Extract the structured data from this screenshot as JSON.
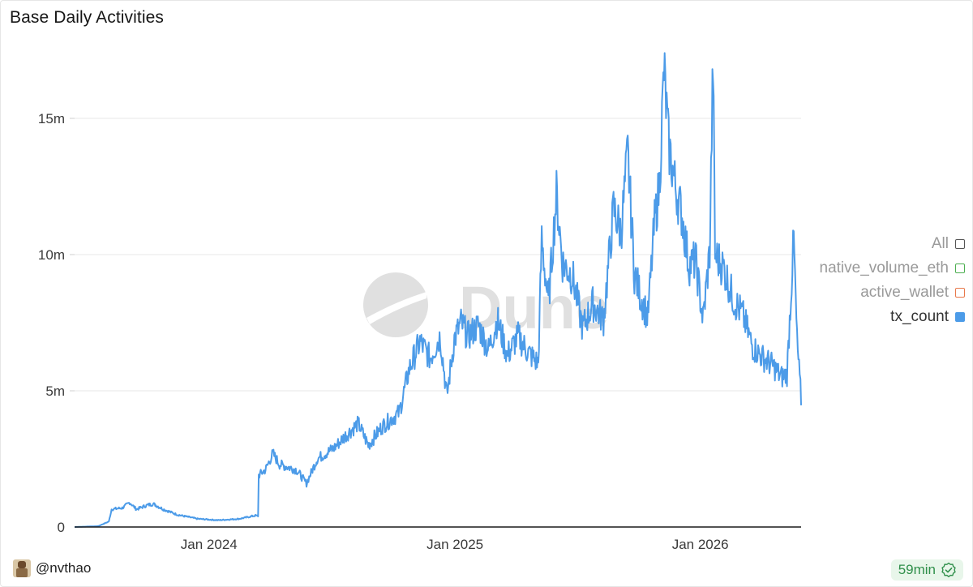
{
  "title": "Base Daily Activities",
  "legend": [
    {
      "label": "All",
      "color": "#555555",
      "filled": false,
      "muted": true
    },
    {
      "label": "native_volume_eth",
      "color": "#4caf50",
      "filled": false,
      "muted": true
    },
    {
      "label": "active_wallet",
      "color": "#e8784a",
      "filled": false,
      "muted": true
    },
    {
      "label": "tx_count",
      "color": "#4c9be8",
      "filled": true,
      "muted": false
    }
  ],
  "footer": {
    "username": "@nvthao",
    "refresh": "59min",
    "avatar_icon": "avatar-icon",
    "refresh_icon": "check-icon"
  },
  "watermark": "Dune",
  "chart_data": {
    "type": "line",
    "series_name": "tx_count",
    "color": "#4c9be8",
    "ylim": [
      0,
      17500000
    ],
    "yticks": [
      {
        "value": 0,
        "label": "0"
      },
      {
        "value": 5000000,
        "label": "5m"
      },
      {
        "value": 10000000,
        "label": "10m"
      },
      {
        "value": 15000000,
        "label": "15m"
      }
    ],
    "xlim": [
      "2023-06-15",
      "2026-05-31"
    ],
    "xticks": [
      {
        "date": "2024-01-01",
        "label": "Jan 2024"
      },
      {
        "date": "2025-01-01",
        "label": "Jan 2025"
      },
      {
        "date": "2026-01-01",
        "label": "Jan 2026"
      }
    ],
    "points": [
      [
        "2023-06-15",
        0
      ],
      [
        "2023-07-20",
        30000
      ],
      [
        "2023-08-05",
        200000
      ],
      [
        "2023-08-09",
        650000
      ],
      [
        "2023-08-25",
        700000
      ],
      [
        "2023-09-05",
        900000
      ],
      [
        "2023-09-15",
        650000
      ],
      [
        "2023-10-01",
        800000
      ],
      [
        "2023-10-10",
        850000
      ],
      [
        "2023-10-25",
        650000
      ],
      [
        "2023-11-15",
        450000
      ],
      [
        "2023-12-15",
        300000
      ],
      [
        "2024-01-15",
        250000
      ],
      [
        "2024-02-15",
        300000
      ],
      [
        "2024-03-10",
        420000
      ],
      [
        "2024-03-14",
        400000
      ],
      [
        "2024-03-15",
        1900000
      ],
      [
        "2024-03-25",
        2100000
      ],
      [
        "2024-04-05",
        2700000
      ],
      [
        "2024-04-15",
        2300000
      ],
      [
        "2024-05-10",
        2100000
      ],
      [
        "2024-05-25",
        1600000
      ],
      [
        "2024-06-10",
        2500000
      ],
      [
        "2024-07-05",
        2900000
      ],
      [
        "2024-07-20",
        3300000
      ],
      [
        "2024-08-10",
        3800000
      ],
      [
        "2024-08-25",
        3000000
      ],
      [
        "2024-09-15",
        3700000
      ],
      [
        "2024-10-10",
        4200000
      ],
      [
        "2024-10-25",
        5800000
      ],
      [
        "2024-11-10",
        6800000
      ],
      [
        "2024-11-25",
        6200000
      ],
      [
        "2024-12-10",
        7000000
      ],
      [
        "2024-12-20",
        4800000
      ],
      [
        "2024-12-31",
        6900000
      ],
      [
        "2025-01-10",
        7500000
      ],
      [
        "2025-01-20",
        7000000
      ],
      [
        "2025-02-05",
        7400000
      ],
      [
        "2025-02-20",
        6500000
      ],
      [
        "2025-03-05",
        7600000
      ],
      [
        "2025-03-20",
        6300000
      ],
      [
        "2025-04-05",
        7000000
      ],
      [
        "2025-04-20",
        6400000
      ],
      [
        "2025-05-05",
        6000000
      ],
      [
        "2025-05-10",
        10500000
      ],
      [
        "2025-05-20",
        8200000
      ],
      [
        "2025-06-01",
        12200000
      ],
      [
        "2025-06-10",
        9700000
      ],
      [
        "2025-06-25",
        9200000
      ],
      [
        "2025-07-10",
        7300000
      ],
      [
        "2025-07-25",
        8200000
      ],
      [
        "2025-08-10",
        7600000
      ],
      [
        "2025-08-25",
        11700000
      ],
      [
        "2025-09-05",
        10800000
      ],
      [
        "2025-09-15",
        13700000
      ],
      [
        "2025-09-25",
        9300000
      ],
      [
        "2025-10-05",
        8400000
      ],
      [
        "2025-10-15",
        7700000
      ],
      [
        "2025-10-25",
        11200000
      ],
      [
        "2025-11-01",
        12500000
      ],
      [
        "2025-11-08",
        16800000
      ],
      [
        "2025-11-15",
        14000000
      ],
      [
        "2025-11-25",
        12500000
      ],
      [
        "2025-12-05",
        11400000
      ],
      [
        "2025-12-15",
        9600000
      ],
      [
        "2025-12-25",
        9800000
      ],
      [
        "2026-01-05",
        7600000
      ],
      [
        "2026-01-15",
        10100000
      ],
      [
        "2026-01-20",
        17200000
      ],
      [
        "2026-01-23",
        10000000
      ],
      [
        "2026-02-05",
        9500000
      ],
      [
        "2026-02-20",
        8300000
      ],
      [
        "2026-03-05",
        7800000
      ],
      [
        "2026-03-20",
        6600000
      ],
      [
        "2026-04-05",
        6200000
      ],
      [
        "2026-04-20",
        5900000
      ],
      [
        "2026-05-01",
        5500000
      ],
      [
        "2026-05-10",
        5600000
      ],
      [
        "2026-05-20",
        10600000
      ],
      [
        "2026-05-25",
        6800000
      ],
      [
        "2026-05-31",
        4700000
      ]
    ]
  }
}
